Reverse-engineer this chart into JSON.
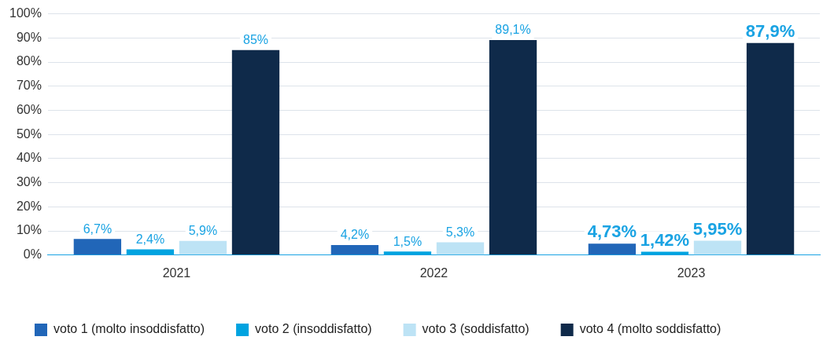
{
  "chart_data": {
    "type": "bar",
    "categories": [
      "2021",
      "2022",
      "2023"
    ],
    "series": [
      {
        "name": "voto 1 (molto insoddisfatto)",
        "color": "#2166b8",
        "values": [
          6.7,
          4.2,
          4.73
        ],
        "value_labels": [
          "6,7%",
          "4,2%",
          "4,73%"
        ]
      },
      {
        "name": "voto 2 (insoddisfatto)",
        "color": "#00a3e0",
        "values": [
          2.4,
          1.5,
          1.42
        ],
        "value_labels": [
          "2,4%",
          "1,5%",
          "1,42%"
        ]
      },
      {
        "name": "voto 3 (soddisfatto)",
        "color": "#bde3f5",
        "values": [
          5.9,
          5.3,
          5.95
        ],
        "value_labels": [
          "5,9%",
          "5,3%",
          "5,95%"
        ]
      },
      {
        "name": "voto 4 (molto soddisfatto)",
        "color": "#0f2a4a",
        "values": [
          85,
          89.1,
          87.9
        ],
        "value_labels": [
          "85%",
          "89,1%",
          "87,9%"
        ]
      }
    ],
    "ylim": [
      0,
      100
    ],
    "yticks": [
      {
        "value": 0,
        "label": "0%"
      },
      {
        "value": 10,
        "label": "10%"
      },
      {
        "value": 20,
        "label": "20%"
      },
      {
        "value": 30,
        "label": "30%"
      },
      {
        "value": 40,
        "label": "40%"
      },
      {
        "value": 50,
        "label": "50%"
      },
      {
        "value": 60,
        "label": "60%"
      },
      {
        "value": 70,
        "label": "70%"
      },
      {
        "value": 80,
        "label": "80%"
      },
      {
        "value": 90,
        "label": "90%"
      },
      {
        "value": 100,
        "label": "100%"
      }
    ],
    "grid": "y",
    "legend": "bottom left"
  }
}
